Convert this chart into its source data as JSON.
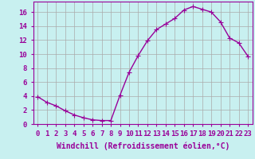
{
  "x": [
    0,
    1,
    2,
    3,
    4,
    5,
    6,
    7,
    8,
    9,
    10,
    11,
    12,
    13,
    14,
    15,
    16,
    17,
    18,
    19,
    20,
    21,
    22,
    23
  ],
  "y": [
    3.9,
    3.1,
    2.6,
    1.9,
    1.3,
    0.9,
    0.6,
    0.5,
    0.5,
    4.1,
    7.4,
    9.8,
    11.9,
    13.5,
    14.3,
    15.1,
    16.3,
    16.8,
    16.4,
    16.0,
    14.6,
    12.3,
    11.6,
    9.7
  ],
  "line_color": "#990099",
  "marker": "+",
  "markersize": 4,
  "linewidth": 1.0,
  "background_color": "#c8f0f0",
  "grid_color": "#aaaaaa",
  "xlabel": "Windchill (Refroidissement éolien,°C)",
  "xlabel_fontsize": 7,
  "tick_fontsize": 6.5,
  "xlim": [
    -0.5,
    23.5
  ],
  "ylim": [
    0,
    17.5
  ],
  "yticks": [
    0,
    2,
    4,
    6,
    8,
    10,
    12,
    14,
    16
  ],
  "xticks": [
    0,
    1,
    2,
    3,
    4,
    5,
    6,
    7,
    8,
    9,
    10,
    11,
    12,
    13,
    14,
    15,
    16,
    17,
    18,
    19,
    20,
    21,
    22,
    23
  ]
}
